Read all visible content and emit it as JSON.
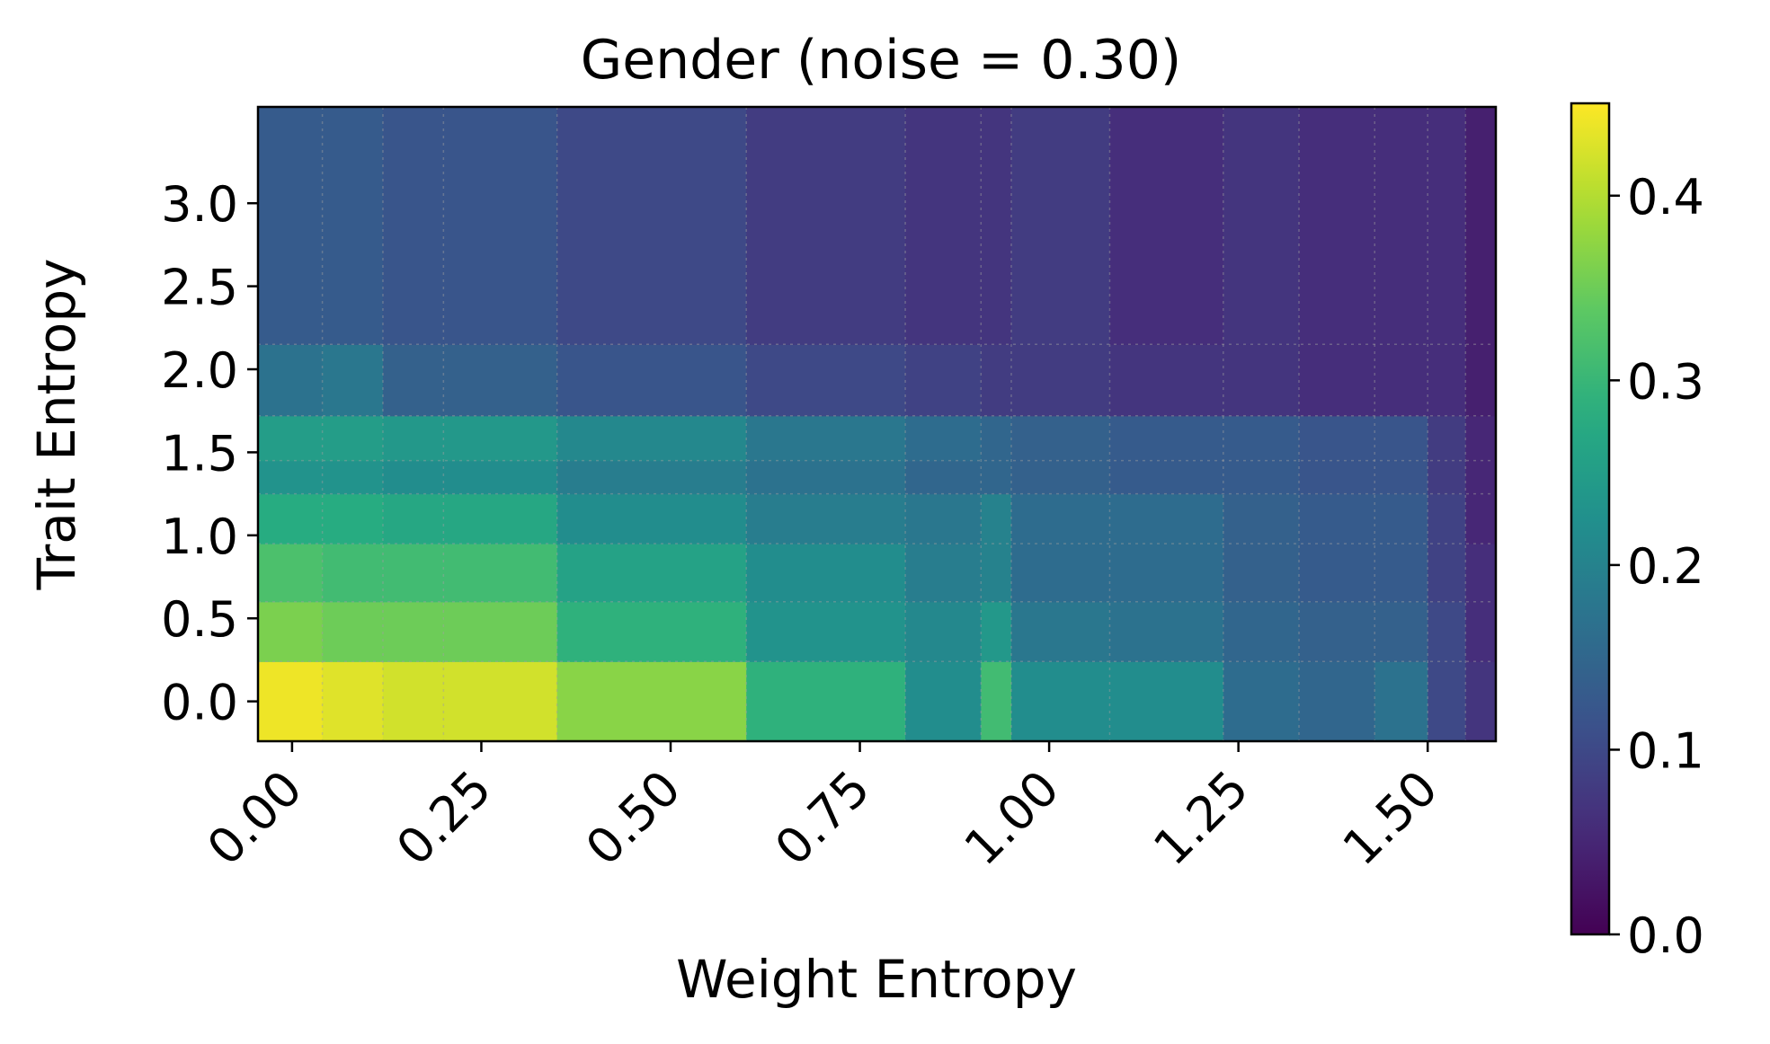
{
  "chart_data": {
    "type": "heatmap",
    "title": "Gender (noise = 0.30)",
    "xlabel": "Weight Entropy",
    "ylabel": "Trait Entropy",
    "colormap": "viridis",
    "clim": [
      0.0,
      0.45
    ],
    "xlim": [
      -0.045,
      1.59
    ],
    "ylim": [
      -0.24,
      3.58
    ],
    "x_ticks": [
      0.0,
      0.25,
      0.5,
      0.75,
      1.0,
      1.25,
      1.5
    ],
    "x_tick_labels": [
      "0.00",
      "0.25",
      "0.50",
      "0.75",
      "1.00",
      "1.25",
      "1.50"
    ],
    "y_ticks": [
      0.0,
      0.5,
      1.0,
      1.5,
      2.0,
      2.5,
      3.0
    ],
    "y_tick_labels": [
      "0.0",
      "0.5",
      "1.0",
      "1.5",
      "2.0",
      "2.5",
      "3.0"
    ],
    "colorbar": {
      "ticks": [
        0.0,
        0.1,
        0.2,
        0.3,
        0.4
      ],
      "tick_labels": [
        "0.0",
        "0.1",
        "0.2",
        "0.3",
        "0.4"
      ]
    },
    "grid": true,
    "x_edges": [
      -0.045,
      0.04,
      0.12,
      0.2,
      0.35,
      0.6,
      0.81,
      0.91,
      0.95,
      1.08,
      1.23,
      1.33,
      1.43,
      1.5,
      1.55,
      1.59
    ],
    "y_edges": [
      -0.24,
      0.24,
      0.6,
      0.95,
      1.25,
      1.45,
      1.72,
      2.15,
      3.58
    ],
    "values": [
      [
        0.44,
        0.43,
        0.42,
        0.42,
        0.37,
        0.29,
        0.22,
        0.31,
        0.22,
        0.22,
        0.16,
        0.15,
        0.17,
        0.1,
        0.07
      ],
      [
        0.36,
        0.35,
        0.35,
        0.35,
        0.29,
        0.23,
        0.21,
        0.24,
        0.18,
        0.17,
        0.15,
        0.14,
        0.14,
        0.1,
        0.06
      ],
      [
        0.32,
        0.31,
        0.31,
        0.31,
        0.26,
        0.22,
        0.19,
        0.2,
        0.16,
        0.16,
        0.14,
        0.13,
        0.13,
        0.09,
        0.06
      ],
      [
        0.28,
        0.28,
        0.27,
        0.27,
        0.22,
        0.19,
        0.18,
        0.2,
        0.16,
        0.16,
        0.14,
        0.13,
        0.13,
        0.09,
        0.05
      ],
      [
        0.23,
        0.23,
        0.22,
        0.22,
        0.19,
        0.17,
        0.15,
        0.15,
        0.14,
        0.13,
        0.13,
        0.12,
        0.12,
        0.08,
        0.05
      ],
      [
        0.25,
        0.25,
        0.24,
        0.24,
        0.21,
        0.18,
        0.16,
        0.15,
        0.14,
        0.13,
        0.13,
        0.12,
        0.12,
        0.08,
        0.05
      ],
      [
        0.17,
        0.18,
        0.14,
        0.14,
        0.12,
        0.1,
        0.09,
        0.08,
        0.08,
        0.07,
        0.07,
        0.06,
        0.06,
        0.06,
        0.04
      ],
      [
        0.13,
        0.13,
        0.12,
        0.12,
        0.1,
        0.08,
        0.07,
        0.07,
        0.08,
        0.06,
        0.07,
        0.06,
        0.06,
        0.06,
        0.04
      ]
    ]
  }
}
